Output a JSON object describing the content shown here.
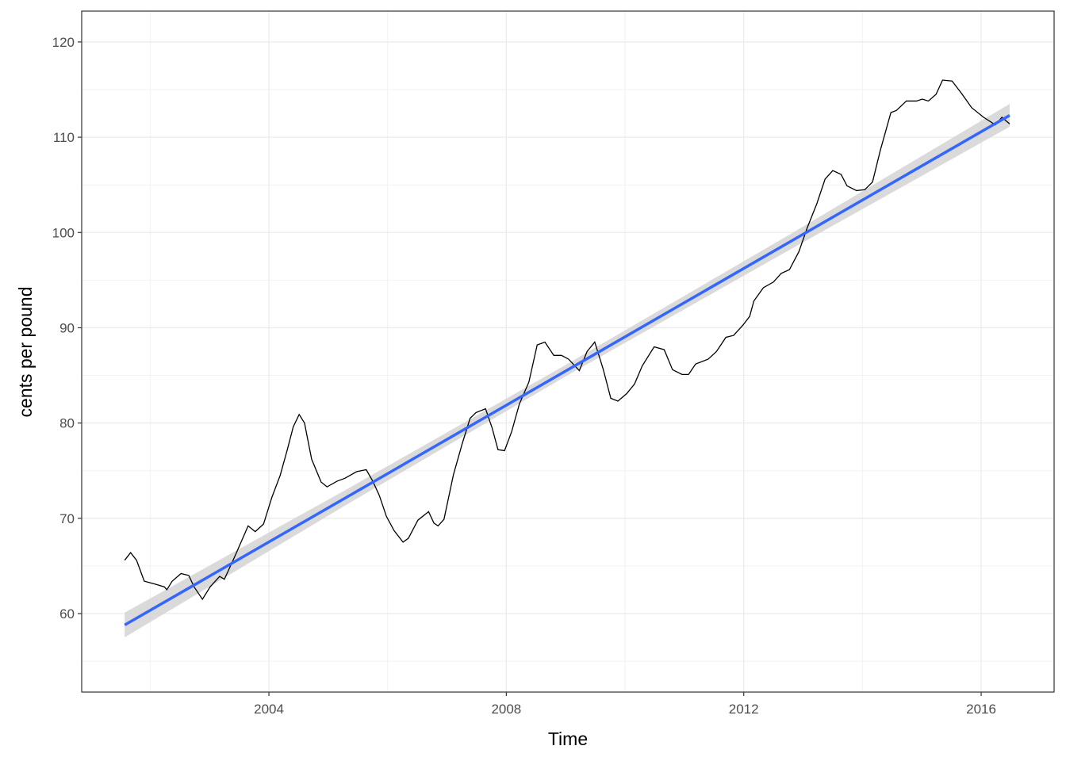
{
  "chart_data": {
    "type": "line",
    "x_label": "Time",
    "y_label": "cents per pound",
    "xlim": [
      2000.846,
      2017.229
    ],
    "ylim": [
      51.76,
      123.24
    ],
    "xticks": [
      2004,
      2008,
      2012,
      2016
    ],
    "yticks": [
      60,
      70,
      80,
      90,
      100,
      110,
      120
    ],
    "x_minor_ticks": [
      2002,
      2006,
      2010,
      2014
    ],
    "y_minor_ticks": [
      55,
      65,
      75,
      85,
      95,
      105,
      115
    ],
    "grid": true,
    "color": "#000000",
    "x": [
      2001.57,
      2001.67,
      2001.77,
      2001.9,
      2002.08,
      2002.24,
      2002.28,
      2002.37,
      2002.52,
      2002.65,
      2002.74,
      2002.88,
      2003.01,
      2003.17,
      2003.25,
      2003.44,
      2003.65,
      2003.77,
      2003.91,
      2004.05,
      2004.19,
      2004.31,
      2004.41,
      2004.51,
      2004.6,
      2004.72,
      2004.88,
      2004.98,
      2005.15,
      2005.28,
      2005.48,
      2005.64,
      2005.75,
      2005.86,
      2005.98,
      2006.11,
      2006.26,
      2006.35,
      2006.51,
      2006.69,
      2006.78,
      2006.85,
      2006.95,
      2007.11,
      2007.26,
      2007.39,
      2007.49,
      2007.65,
      2007.76,
      2007.86,
      2007.97,
      2008.09,
      2008.22,
      2008.38,
      2008.52,
      2008.65,
      2008.8,
      2008.93,
      2009.05,
      2009.23,
      2009.36,
      2009.49,
      2009.63,
      2009.76,
      2009.88,
      2010.03,
      2010.16,
      2010.29,
      2010.49,
      2010.66,
      2010.8,
      2010.96,
      2011.07,
      2011.19,
      2011.4,
      2011.54,
      2011.7,
      2011.83,
      2011.99,
      2012.1,
      2012.17,
      2012.33,
      2012.5,
      2012.63,
      2012.77,
      2012.93,
      2013.07,
      2013.23,
      2013.37,
      2013.5,
      2013.64,
      2013.74,
      2013.9,
      2014.04,
      2014.17,
      2014.3,
      2014.48,
      2014.57,
      2014.74,
      2014.91,
      2015.01,
      2015.11,
      2015.24,
      2015.35,
      2015.51,
      2015.67,
      2015.84,
      2016.04,
      2016.24,
      2016.35,
      2016.48
    ],
    "values": [
      65.6,
      66.4,
      65.6,
      63.4,
      63.1,
      62.8,
      62.5,
      63.4,
      64.2,
      64.0,
      62.8,
      61.5,
      62.8,
      63.9,
      63.6,
      66.2,
      69.2,
      68.6,
      69.4,
      72.2,
      74.5,
      77.2,
      79.6,
      80.9,
      80.0,
      76.2,
      73.8,
      73.3,
      73.9,
      74.2,
      74.9,
      75.1,
      73.9,
      72.4,
      70.2,
      68.7,
      67.5,
      67.9,
      69.8,
      70.7,
      69.5,
      69.2,
      69.9,
      74.6,
      77.9,
      80.5,
      81.1,
      81.5,
      79.5,
      77.2,
      77.1,
      79.1,
      82.0,
      84.3,
      88.2,
      88.5,
      87.1,
      87.1,
      86.7,
      85.5,
      87.5,
      88.5,
      85.7,
      82.6,
      82.3,
      83.1,
      84.1,
      86.0,
      88.0,
      87.7,
      85.6,
      85.1,
      85.1,
      86.2,
      86.7,
      87.5,
      89.0,
      89.2,
      90.3,
      91.2,
      92.8,
      94.2,
      94.8,
      95.7,
      96.1,
      98.0,
      100.5,
      103.0,
      105.6,
      106.5,
      106.1,
      104.9,
      104.4,
      104.5,
      105.3,
      108.6,
      112.6,
      112.8,
      113.8,
      113.8,
      114.0,
      113.8,
      114.5,
      116.0,
      115.9,
      114.6,
      113.1,
      112.1,
      111.3,
      112.1,
      111.4
    ],
    "trend": {
      "color": "#3366ff",
      "band_color": "#d3d3d3",
      "x": [
        2001.57,
        2005.3,
        2009.0,
        2012.75,
        2016.48
      ],
      "values": [
        58.8,
        72.18,
        85.46,
        98.92,
        112.3
      ],
      "lower": [
        57.5,
        71.4,
        84.9,
        98.1,
        111.1
      ],
      "upper": [
        60.1,
        73.0,
        86.1,
        99.7,
        113.5
      ]
    }
  }
}
